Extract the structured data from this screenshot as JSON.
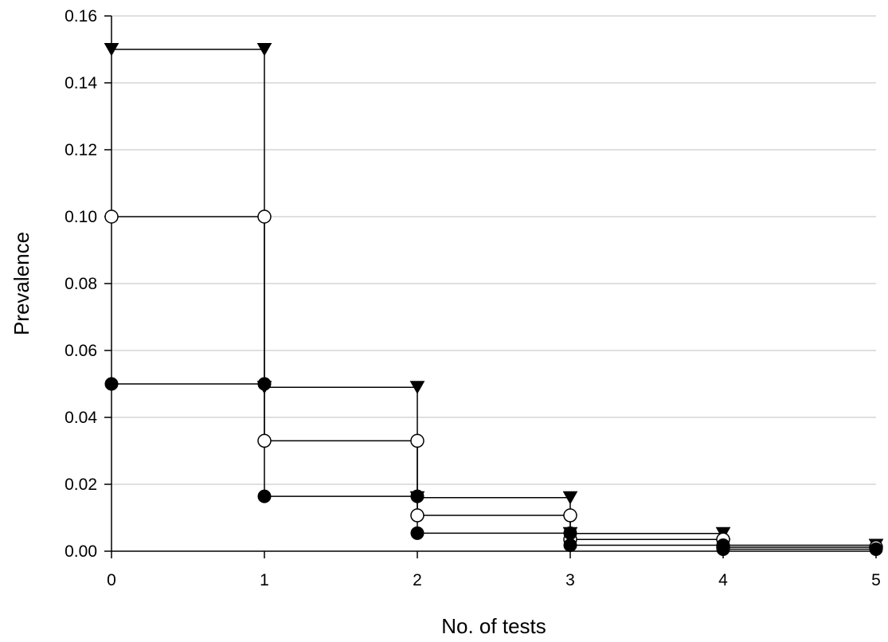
{
  "chart_data": {
    "type": "line",
    "title": "",
    "xlabel": "No. of tests",
    "ylabel": "Prevalence",
    "xlim": [
      0,
      5
    ],
    "ylim": [
      0,
      0.16
    ],
    "x_ticks": [
      "0",
      "1",
      "2",
      "3",
      "4",
      "5"
    ],
    "y_ticks": [
      "0.00",
      "0.02",
      "0.04",
      "0.06",
      "0.08",
      "0.10",
      "0.12",
      "0.14",
      "0.16"
    ],
    "grid": "horizontal",
    "step": "each series holds its value over the interval [x, x+1], with vertical connectors at each test",
    "series": [
      {
        "marker": "triangle-down-filled",
        "x": [
          0,
          1,
          2,
          3,
          4
        ],
        "values": [
          0.15,
          0.049,
          0.016,
          0.0053,
          0.0018
        ]
      },
      {
        "marker": "circle-open",
        "x": [
          0,
          1,
          2,
          3,
          4
        ],
        "values": [
          0.1,
          0.033,
          0.0107,
          0.0035,
          0.0012
        ]
      },
      {
        "marker": "circle-filled",
        "x": [
          0,
          1,
          2,
          3,
          4
        ],
        "values": [
          0.05,
          0.0164,
          0.0054,
          0.0018,
          0.0006
        ]
      }
    ]
  }
}
